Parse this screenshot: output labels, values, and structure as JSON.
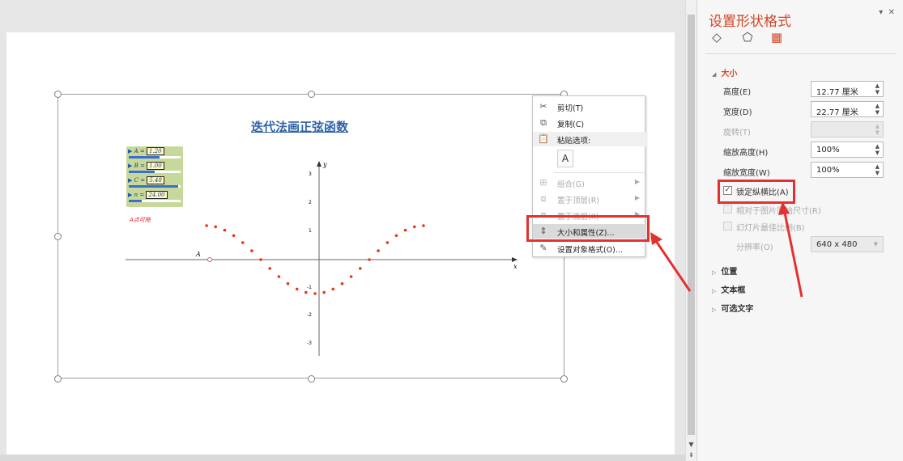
{
  "panel": {
    "title": "设置形状格式",
    "tabs": [
      "fill-line-icon",
      "effects-icon",
      "size-properties-icon"
    ],
    "sections": {
      "size": "大小",
      "position": "位置",
      "textbox": "文本框",
      "alt_text": "可选文字"
    },
    "fields": {
      "height_label": "高度(E)",
      "height_value": "12.77 厘米",
      "width_label": "宽度(D)",
      "width_value": "22.77 厘米",
      "rotation_label": "旋转(T)",
      "rotation_value": "",
      "scale_height_label": "缩放高度(H)",
      "scale_height_value": "100%",
      "scale_width_label": "缩放宽度(W)",
      "scale_width_value": "100%",
      "lock_aspect_label": "锁定纵横比(A)",
      "relative_original_label": "相对于图片原始尺寸(R)",
      "best_scale_label": "幻灯片最佳比例(B)",
      "resolution_label": "分辨率(O)",
      "resolution_value": "640 x 480"
    }
  },
  "context_menu": {
    "cut": "剪切(T)",
    "copy": "复制(C)",
    "paste_options": "粘贴选项:",
    "group": "组合(G)",
    "bring_front": "置于顶层(R)",
    "send_back": "置于底层(K)",
    "size_position": "大小和属性(Z)...",
    "format_shape": "设置对象格式(O)..."
  },
  "geogebra": {
    "title": "迭代法画正弦函数",
    "sliders": [
      {
        "name": "A",
        "value": "1.20",
        "fill": 0.6
      },
      {
        "name": "B",
        "value": "1.00",
        "fill": 0.5
      },
      {
        "name": "C",
        "value": "5.48",
        "fill": 0.95
      },
      {
        "name": "n",
        "value": "24.00",
        "fill": 0.25
      }
    ],
    "note": "A点可拖",
    "point_label": "A",
    "x_axis_label": "x",
    "y_axis_label": "y",
    "y_ticks": [
      "3",
      "2",
      "1",
      "-1",
      "-2",
      "-3"
    ]
  }
}
